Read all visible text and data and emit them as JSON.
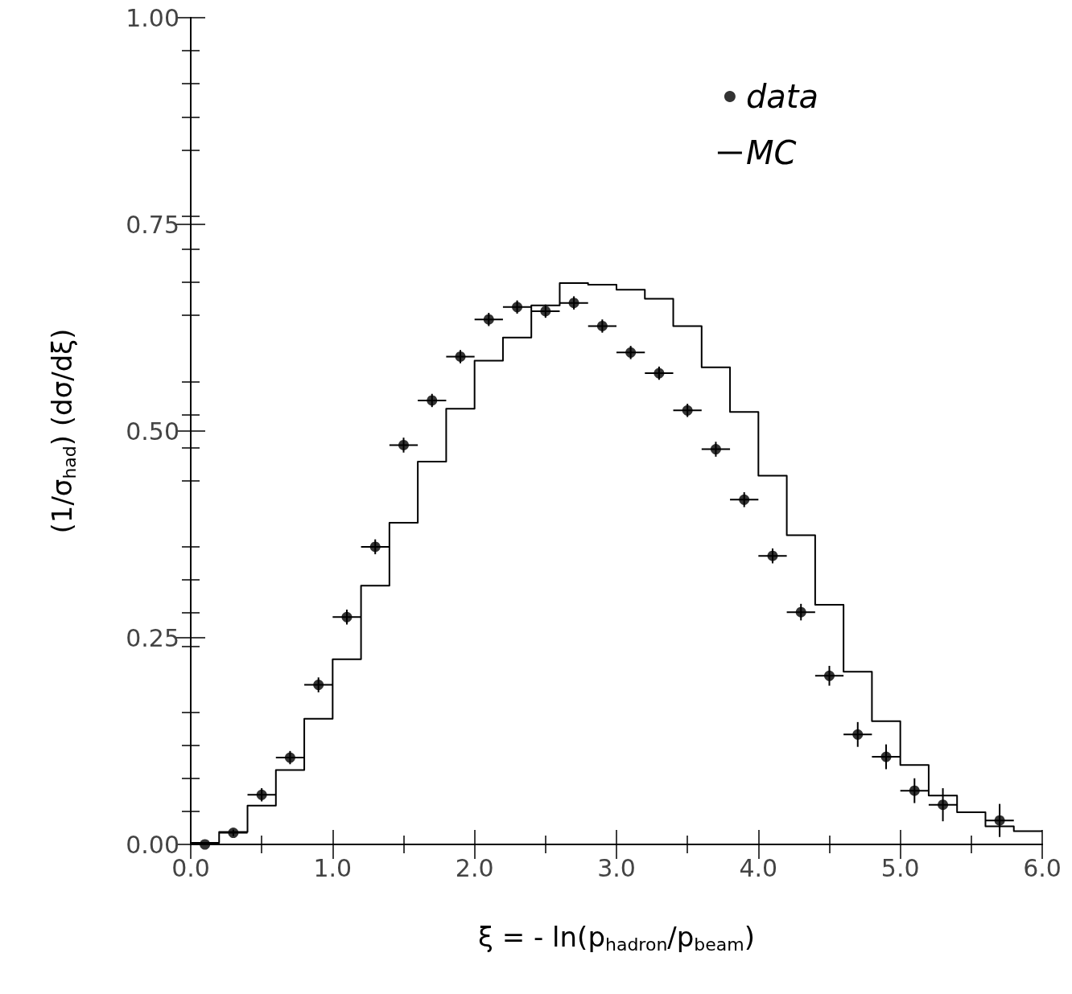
{
  "chart_data": {
    "type": "histogram",
    "xlabel": "ξ = - ln(p$_{hadron}$/p$_{beam}$)",
    "ylabel": "(1/σ$_{had}$) (dσ/dξ)",
    "xlim": [
      0,
      6
    ],
    "ylim": [
      0,
      1
    ],
    "xticks": [
      {
        "value": 0,
        "label": "0.0"
      },
      {
        "value": 1,
        "label": "1.0"
      },
      {
        "value": 2,
        "label": "2.0"
      },
      {
        "value": 3,
        "label": "3.0"
      },
      {
        "value": 4,
        "label": "4.0"
      },
      {
        "value": 5,
        "label": "5.0"
      },
      {
        "value": 6,
        "label": "6.0"
      }
    ],
    "yticks": [
      {
        "value": 0,
        "label": "0.00"
      },
      {
        "value": 0.25,
        "label": "0.25"
      },
      {
        "value": 0.5,
        "label": "0.50"
      },
      {
        "value": 0.75,
        "label": "0.75"
      },
      {
        "value": 1,
        "label": "1.00"
      }
    ],
    "grid": false,
    "legend": "top right",
    "series": [
      {
        "name": "data",
        "type": "scatter",
        "color": "#000000",
        "marker": "circle",
        "x": [
          0.1,
          0.3,
          0.5,
          0.7,
          0.9,
          1.1,
          1.3,
          1.5,
          1.7,
          1.9,
          2.1,
          2.3,
          2.5,
          2.7,
          2.9,
          3.1,
          3.3,
          3.5,
          3.7,
          3.9,
          4.1,
          4.3,
          4.5,
          4.7,
          4.9,
          5.1,
          5.3,
          5.7
        ],
        "values": [
          0.0,
          0.014,
          0.06,
          0.105,
          0.193,
          0.275,
          0.36,
          0.483,
          0.537,
          0.59,
          0.635,
          0.65,
          0.645,
          0.655,
          0.627,
          0.595,
          0.57,
          0.525,
          0.478,
          0.417,
          0.349,
          0.281,
          0.204,
          0.133,
          0.106,
          0.065,
          0.048,
          0.029
        ],
        "errors": [
          null,
          0.004,
          0.008,
          0.008,
          0.009,
          0.009,
          0.009,
          0.009,
          0.008,
          0.008,
          0.008,
          0.008,
          0.008,
          0.008,
          0.008,
          0.008,
          0.008,
          0.008,
          0.009,
          0.009,
          0.009,
          0.01,
          0.012,
          0.015,
          0.015,
          0.015,
          0.02,
          0.02
        ],
        "xerrors": [
          0.1,
          0.1,
          0.1,
          0.1,
          0.1,
          0.1,
          0.1,
          0.1,
          0.1,
          0.1,
          0.1,
          0.1,
          0.1,
          0.1,
          0.1,
          0.1,
          0.1,
          0.1,
          0.1,
          0.1,
          0.1,
          0.1,
          0.1,
          0.1,
          0.1,
          0.1,
          0.1,
          0.1
        ]
      },
      {
        "name": "MC",
        "color": "#000000",
        "bins": [
          0,
          0.2,
          0.4,
          0.6,
          0.8,
          1.0,
          1.2,
          1.4,
          1.6,
          1.8,
          2.0,
          2.2,
          2.4,
          2.6,
          2.8,
          3.0,
          3.2,
          3.4,
          3.6,
          3.8,
          4.0,
          4.2,
          4.4,
          4.6,
          4.8,
          5.0,
          5.2,
          5.4,
          5.6,
          5.8,
          6.0
        ],
        "values": [
          0.002,
          0.015,
          0.047,
          0.09,
          0.152,
          0.224,
          0.313,
          0.389,
          0.463,
          0.527,
          0.585,
          0.613,
          0.652,
          0.679,
          0.677,
          0.671,
          0.66,
          0.627,
          0.577,
          0.523,
          0.446,
          0.374,
          0.29,
          0.209,
          0.149,
          0.096,
          0.059,
          0.039,
          0.022,
          0.016
        ]
      }
    ]
  }
}
